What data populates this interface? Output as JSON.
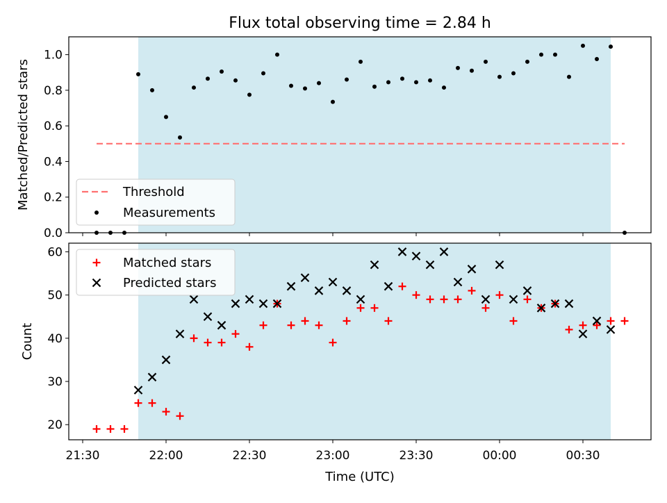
{
  "title": "Flux total observing time = 2.84 h",
  "colors": {
    "shade": "#add8e6",
    "threshold": "#ff7070",
    "measurement": "#000000",
    "matched": "#ff0000",
    "predicted": "#000000"
  },
  "chart_data": [
    {
      "type": "scatter",
      "ylabel": "Matched/Predicted stars",
      "ylim": [
        0,
        1.1
      ],
      "yticks": [
        "0.0",
        "0.2",
        "0.4",
        "0.6",
        "0.8",
        "1.0"
      ],
      "threshold": {
        "name": "Threshold",
        "value": 0.5,
        "x_range": [
          "21:35",
          "00:45"
        ]
      },
      "observing_window": [
        "21:50",
        "00:40"
      ],
      "series": [
        {
          "name": "Measurements",
          "x": [
            "21:35",
            "21:40",
            "21:45",
            "21:50",
            "21:55",
            "22:00",
            "22:05",
            "22:10",
            "22:15",
            "22:20",
            "22:25",
            "22:30",
            "22:35",
            "22:40",
            "22:45",
            "22:50",
            "22:55",
            "23:00",
            "23:05",
            "23:10",
            "23:15",
            "23:20",
            "23:25",
            "23:30",
            "23:35",
            "23:40",
            "23:45",
            "23:50",
            "23:55",
            "00:00",
            "00:05",
            "00:10",
            "00:15",
            "00:20",
            "00:25",
            "00:30",
            "00:35",
            "00:40",
            "00:45"
          ],
          "y": [
            0.0,
            0.0,
            0.0,
            0.89,
            0.8,
            0.65,
            0.535,
            0.815,
            0.865,
            0.905,
            0.855,
            0.775,
            0.895,
            1.0,
            0.825,
            0.81,
            0.84,
            0.735,
            0.86,
            0.96,
            0.82,
            0.845,
            0.865,
            0.845,
            0.855,
            0.815,
            0.925,
            0.91,
            0.96,
            0.875,
            0.895,
            0.96,
            1.0,
            1.0,
            0.875,
            1.05,
            0.975,
            1.045,
            0.0
          ]
        }
      ]
    },
    {
      "type": "scatter",
      "xlabel": "Time (UTC)",
      "ylabel": "Count",
      "ylim": [
        16.5,
        62
      ],
      "yticks": [
        "20",
        "30",
        "40",
        "50",
        "60"
      ],
      "xticks": [
        "21:30",
        "22:00",
        "22:30",
        "23:00",
        "23:30",
        "00:00",
        "00:30"
      ],
      "observing_window": [
        "21:50",
        "00:40"
      ],
      "series": [
        {
          "name": "Matched stars",
          "x": [
            "21:35",
            "21:40",
            "21:45",
            "21:50",
            "21:55",
            "22:00",
            "22:05",
            "22:10",
            "22:15",
            "22:20",
            "22:25",
            "22:30",
            "22:35",
            "22:40",
            "22:45",
            "22:50",
            "22:55",
            "23:00",
            "23:05",
            "23:10",
            "23:15",
            "23:20",
            "23:25",
            "23:30",
            "23:35",
            "23:40",
            "23:45",
            "23:50",
            "23:55",
            "00:00",
            "00:05",
            "00:10",
            "00:15",
            "00:20",
            "00:25",
            "00:30",
            "00:35",
            "00:40",
            "00:45"
          ],
          "y": [
            19,
            19,
            19,
            25,
            25,
            23,
            22,
            40,
            39,
            39,
            41,
            38,
            43,
            48,
            43,
            44,
            43,
            39,
            44,
            47,
            47,
            44,
            52,
            50,
            49,
            49,
            49,
            51,
            47,
            50,
            44,
            49,
            47,
            48,
            42,
            43,
            43,
            44,
            44
          ]
        },
        {
          "name": "Predicted stars",
          "x": [
            "21:50",
            "21:55",
            "22:00",
            "22:05",
            "22:10",
            "22:15",
            "22:20",
            "22:25",
            "22:30",
            "22:35",
            "22:40",
            "22:45",
            "22:50",
            "22:55",
            "23:00",
            "23:05",
            "23:10",
            "23:15",
            "23:20",
            "23:25",
            "23:30",
            "23:35",
            "23:40",
            "23:45",
            "23:50",
            "23:55",
            "00:00",
            "00:05",
            "00:10",
            "00:15",
            "00:20",
            "00:25",
            "00:30",
            "00:35",
            "00:40"
          ],
          "y": [
            28,
            31,
            35,
            41,
            49,
            45,
            43,
            48,
            49,
            48,
            48,
            52,
            54,
            51,
            53,
            51,
            49,
            57,
            52,
            60,
            59,
            57,
            60,
            53,
            56,
            49,
            57,
            49,
            51,
            47,
            48,
            48,
            41,
            44,
            42
          ]
        }
      ]
    }
  ]
}
